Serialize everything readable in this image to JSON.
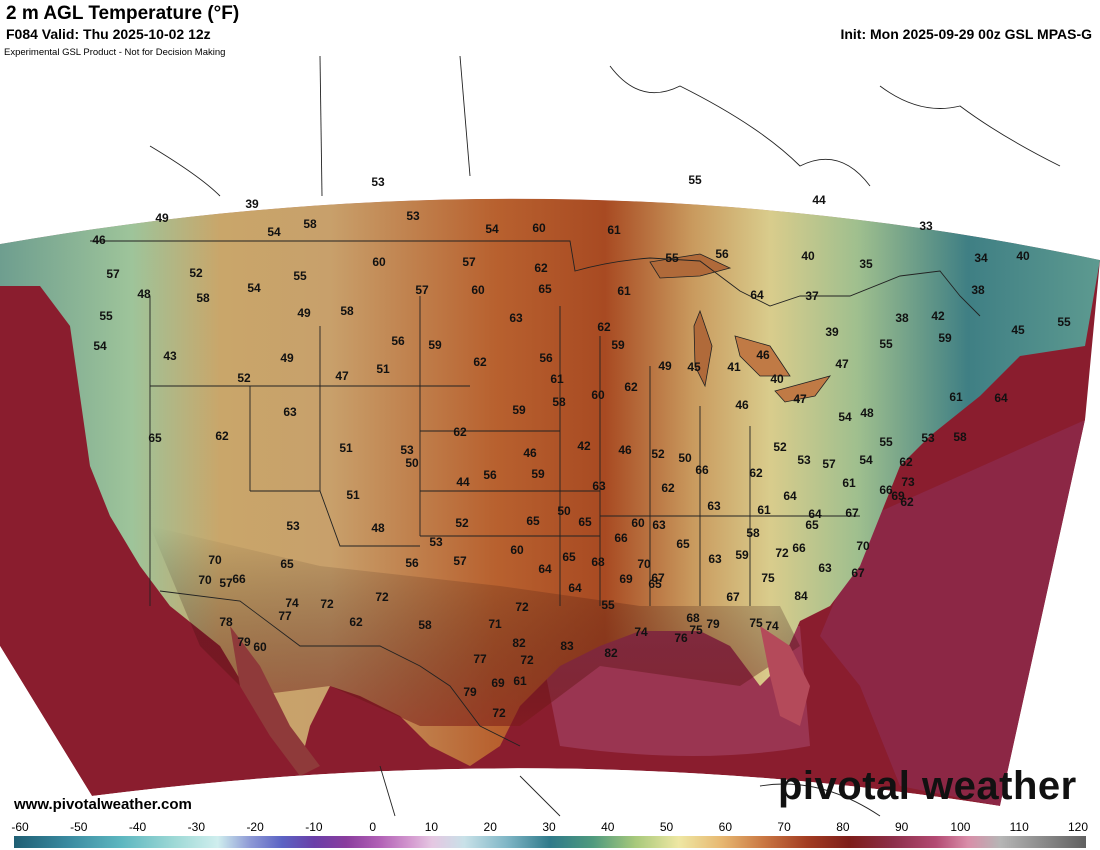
{
  "header": {
    "title": "2 m AGL Temperature (°F)",
    "valid": "F084 Valid: Thu 2025-10-02 12z",
    "init": "Init: Mon 2025-09-29 00z GSL MPAS-G",
    "disclaimer": "Experimental GSL Product - Not for Decision Making"
  },
  "footer": {
    "site": "www.pivotalweather.com",
    "logo": "pivotal weather"
  },
  "colorbar": {
    "ticks": [
      "-60",
      "-50",
      "-40",
      "-30",
      "-20",
      "-10",
      "0",
      "10",
      "20",
      "30",
      "40",
      "50",
      "60",
      "70",
      "80",
      "90",
      "100",
      "110",
      "120"
    ],
    "colors": {
      "cold": "#2f6f86",
      "mild": "#eee7a3",
      "warm": "#c97642",
      "hot": "#7d1d1a",
      "very_hot": "#b34a73"
    }
  },
  "map": {
    "colors": {
      "ocean_pacific": "#8a1d2e",
      "ocean_gulf": "#9a3551",
      "ocean_atlantic": "#8c2745",
      "plains": "#a8461f",
      "mountain_cool": "#7fae9a",
      "northeast_cold": "#3f7f84",
      "border": "#222222"
    },
    "temperatures": [
      "53",
      "55",
      "49",
      "39",
      "54",
      "58",
      "53",
      "54",
      "60",
      "61",
      "44",
      "33",
      "46",
      "57",
      "52",
      "48",
      "54",
      "55",
      "60",
      "57",
      "62",
      "55",
      "56",
      "40",
      "35",
      "34",
      "40",
      "58",
      "60",
      "65",
      "61",
      "37",
      "38",
      "55",
      "49",
      "58",
      "63",
      "64",
      "62",
      "59",
      "57",
      "54",
      "43",
      "49",
      "56",
      "59",
      "62",
      "56",
      "46",
      "39",
      "38",
      "42",
      "45",
      "55",
      "52",
      "47",
      "51",
      "61",
      "63",
      "62",
      "59",
      "58",
      "60",
      "62",
      "49",
      "45",
      "41",
      "40",
      "47",
      "54",
      "48",
      "47",
      "55",
      "59",
      "61",
      "64",
      "62",
      "65",
      "53",
      "51",
      "50",
      "44",
      "46",
      "42",
      "46",
      "52",
      "50",
      "56",
      "59",
      "63",
      "62",
      "66",
      "62",
      "52",
      "46",
      "53",
      "57",
      "61",
      "54",
      "55",
      "62",
      "53",
      "58",
      "51",
      "53",
      "48",
      "52",
      "65",
      "50",
      "65",
      "66",
      "60",
      "63",
      "63",
      "61",
      "64",
      "64",
      "67",
      "66",
      "62",
      "53",
      "57",
      "56",
      "60",
      "64",
      "65",
      "68",
      "69",
      "70",
      "67",
      "65",
      "63",
      "59",
      "58",
      "75",
      "72",
      "66",
      "65",
      "63",
      "67",
      "70",
      "69",
      "73",
      "70",
      "66",
      "70",
      "65",
      "72",
      "72",
      "62",
      "58",
      "71",
      "72",
      "64",
      "55",
      "65",
      "68",
      "67",
      "75",
      "74",
      "84",
      "82",
      "83",
      "82",
      "74",
      "76",
      "75",
      "79",
      "77",
      "60",
      "57",
      "78",
      "79",
      "74",
      "77",
      "61",
      "69",
      "72",
      "72",
      "79"
    ]
  }
}
